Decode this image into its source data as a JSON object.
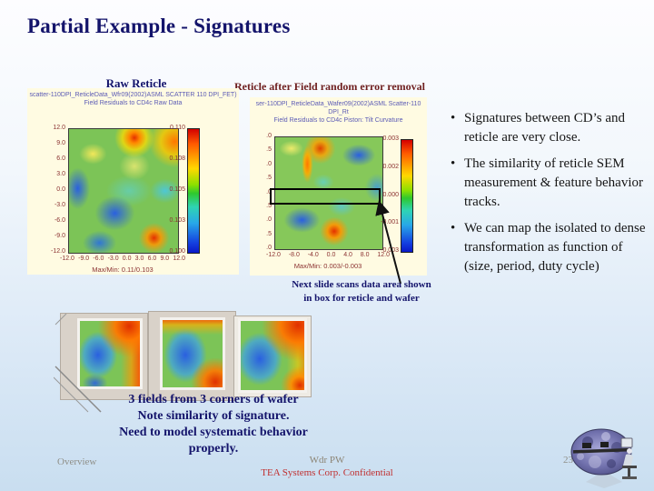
{
  "slide": {
    "title": "Partial Example - Signatures",
    "footer": {
      "section": "Overview",
      "center": "Wdr PW",
      "confidential": "TEA Systems Corp. Confidential",
      "page_number": "23"
    }
  },
  "left_plot": {
    "heading": "Raw Reticle",
    "subtitle_line1": "scatter-110DPI_ReticleData_Wfr09(2002)ASML SCATTER 110 DPI_FET)",
    "subtitle_line2": "Field Residuals to CD4c Raw Data",
    "y_ticks": [
      "12.0",
      "9.0",
      "6.0",
      "3.0",
      "0.0",
      "-3.0",
      "-6.0",
      "-9.0",
      "-12.0"
    ],
    "x_ticks": [
      "-12.0",
      "-9.0",
      "-6.0",
      "-3.0",
      "0.0",
      "3.0",
      "6.0",
      "9.0",
      "12.0"
    ],
    "colorbar_ticks": [
      "0.110",
      "0.108",
      "0.105",
      "0.103",
      "0.100"
    ],
    "maxmin_label": "Max/Min: 0.11/0.103"
  },
  "right_plot": {
    "heading": "Reticle after Field random error removal",
    "subtitle_line1": "ser-110DPI_ReticleData_Wafer09(2002)ASML Scatter-110 DPI_Rt",
    "subtitle_line2": "Field Residuals to CD4c Piston: Tilt Curvature",
    "y_ticks": [
      ".0",
      ".5",
      ".0",
      ".5",
      ".0",
      ".5",
      ".0",
      ".5",
      ".0"
    ],
    "x_ticks": [
      "-12.0",
      "-8.0",
      "-4.0",
      "0.0",
      "4.0",
      "8.0",
      "12.0"
    ],
    "colorbar_ticks": [
      "0.003",
      "0.002",
      "0.000",
      "-0.001",
      "-0.003"
    ],
    "maxmin_label": "Max/Min: 0.003/-0.003"
  },
  "callouts": {
    "next_slide_line1": "Next slide scans data area shown",
    "next_slide_line2": "in box for reticle and wafer"
  },
  "bullets": [
    "Signatures between CD’s and reticle are very close.",
    "The similarity of reticle SEM measurement & feature behavior tracks.",
    "We can map the isolated to dense transformation as function of (size, period, duty cycle)"
  ],
  "bottom_note_lines": [
    "3 fields from 3 corners of wafer",
    "Note similarity of signature.",
    "Need to model systematic behavior",
    "properly."
  ],
  "chart_data": [
    {
      "type": "heatmap",
      "title": "Raw Reticle field residuals",
      "x_range": [
        -12.0,
        12.0
      ],
      "y_range": [
        -12.0,
        12.0
      ],
      "value_range": [
        0.1,
        0.11
      ],
      "max_min": "0.11/0.103",
      "colorbar": "rainbow red-to-blue"
    },
    {
      "type": "heatmap",
      "title": "Reticle after field random error removal",
      "x_range": [
        -12.0,
        12.0
      ],
      "value_range": [
        -0.003,
        0.003
      ],
      "max_min": "0.003/-0.003",
      "colorbar": "rainbow red-to-blue",
      "annotation": "black box marks scanned data area"
    }
  ],
  "colors": {
    "accent_navy": "#14146b",
    "maroon_heading": "#6e1e1e",
    "confidential_red": "#c03030",
    "panel_cream": "#fffbe2"
  }
}
